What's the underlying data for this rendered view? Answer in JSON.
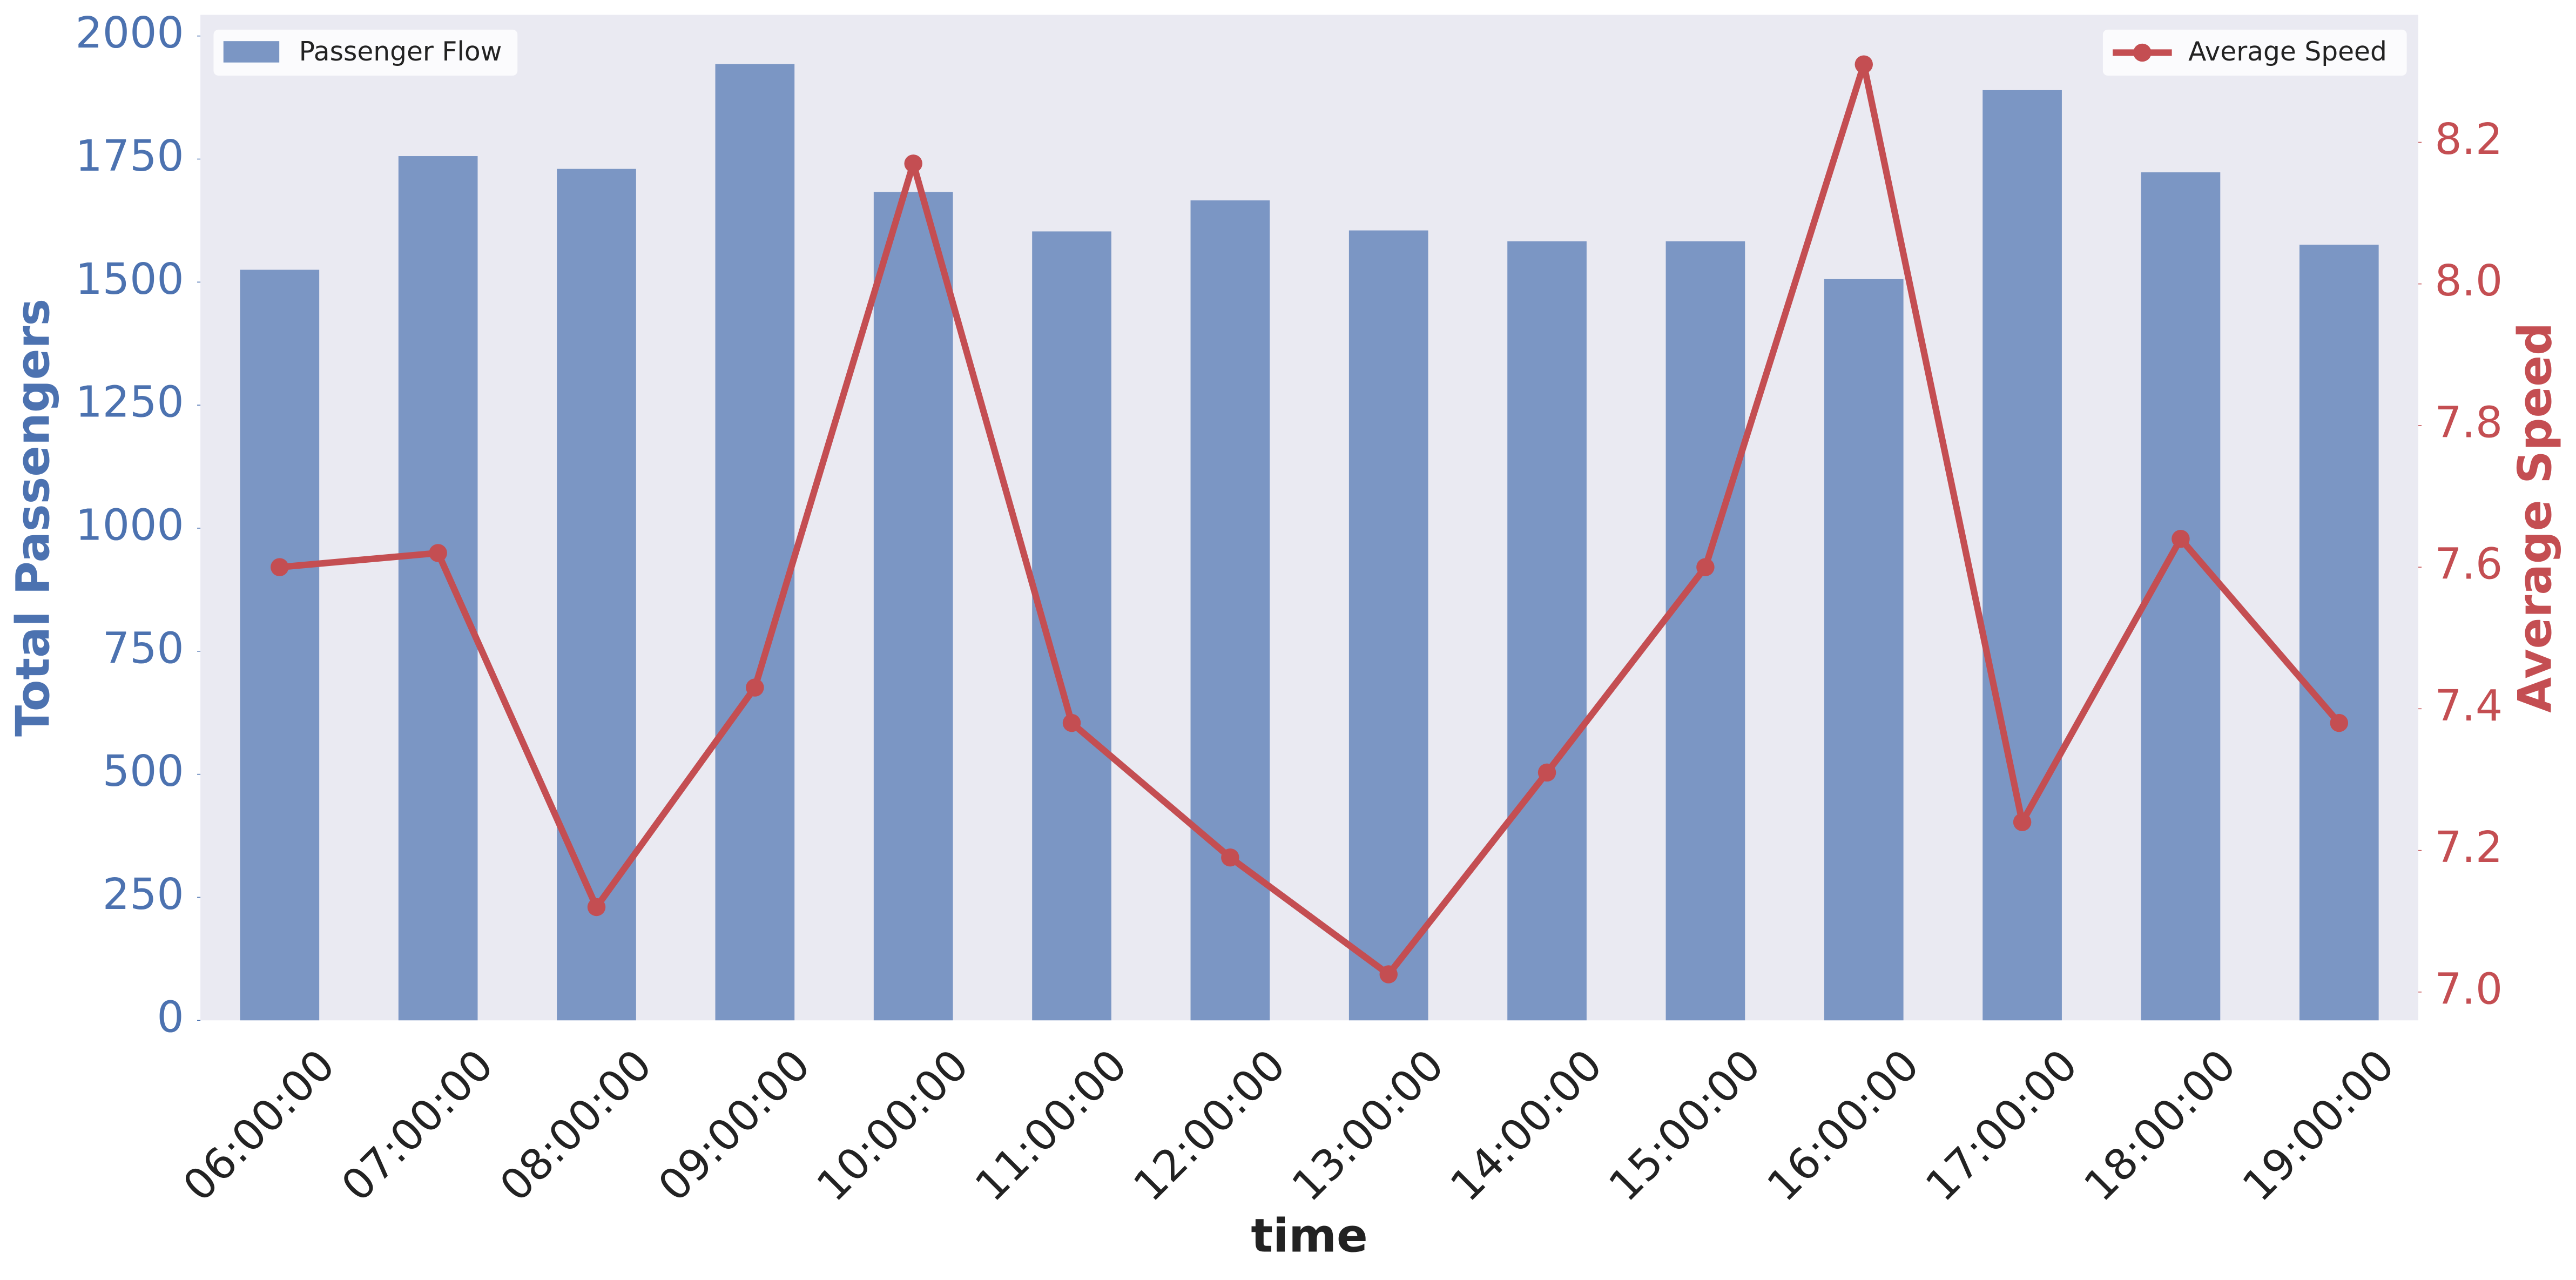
{
  "chart_data": {
    "type": "bar",
    "xlabel": "time",
    "ylabel": "Total Passengers",
    "y2label": "Average Speed",
    "categories": [
      "06:00:00",
      "07:00:00",
      "08:00:00",
      "09:00:00",
      "10:00:00",
      "11:00:00",
      "12:00:00",
      "13:00:00",
      "14:00:00",
      "15:00:00",
      "16:00:00",
      "17:00:00",
      "18:00:00",
      "19:00:00"
    ],
    "series": [
      {
        "name": "Passenger Flow",
        "type": "bar",
        "color": "#7b96c4",
        "legend": "upper left",
        "values": [
          1525,
          1756,
          1730,
          1943,
          1683,
          1603,
          1666,
          1605,
          1583,
          1583,
          1506,
          1890,
          1723,
          1576
        ]
      },
      {
        "name": "Average Speed",
        "type": "line",
        "axis": "y2",
        "color": "#c44e52",
        "legend": "upper right",
        "values": [
          7.6,
          7.62,
          7.12,
          7.43,
          8.17,
          7.38,
          7.19,
          7.025,
          7.31,
          7.6,
          8.31,
          7.24,
          7.64,
          7.38
        ]
      }
    ],
    "ylim": [
      0,
      2043
    ],
    "yticks": [
      0,
      250,
      500,
      750,
      1000,
      1250,
      1500,
      1750,
      2000
    ],
    "y2lim": [
      6.96,
      8.38
    ],
    "y2ticks": [
      {
        "value": 7,
        "label": "7.0"
      },
      7.2,
      7.4,
      7.6,
      7.8,
      {
        "value": 8,
        "label": "8.0"
      },
      8.2
    ],
    "ycolor": "#4c72b0",
    "y2color": "#c44e52",
    "background": "#eaeaf2",
    "grid": false
  }
}
